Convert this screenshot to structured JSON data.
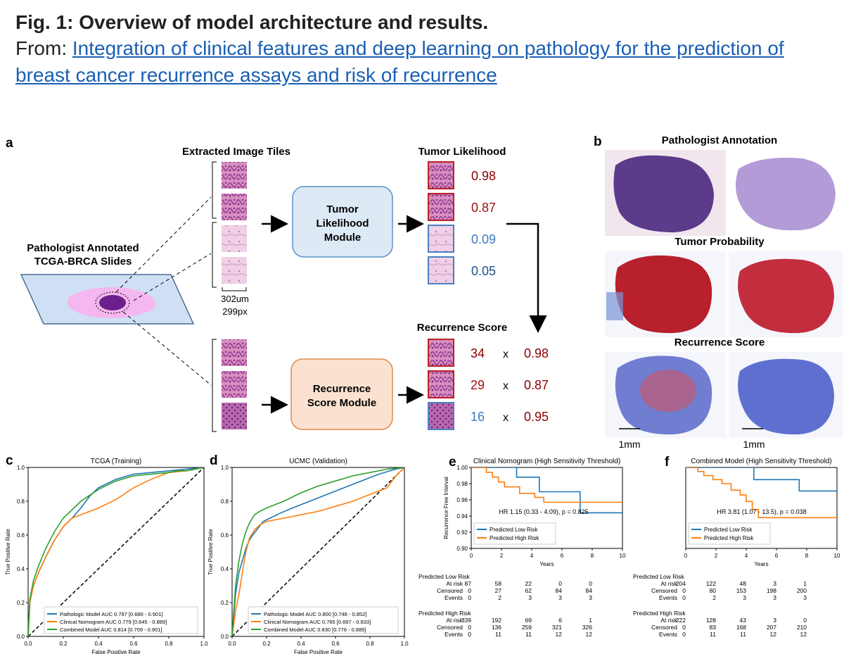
{
  "header": {
    "title": "Fig. 1: Overview of model architecture and results.",
    "from_label": "From: ",
    "link_text": "Integration of clinical features and deep learning on pathology for the prediction of breast cancer recurrence assays and risk of recurrence"
  },
  "panel_a": {
    "letter": "a",
    "slide_label_1": "Pathologist Annotated",
    "slide_label_2": "TCGA-BRCA Slides",
    "tiles_title": "Extracted Image Tiles",
    "scale_1": "302um",
    "scale_2": "299px",
    "tumor_module_1": "Tumor",
    "tumor_module_2": "Likelihood",
    "tumor_module_3": "Module",
    "rs_module_1": "Recurrence",
    "rs_module_2": "Score Module",
    "tumor_likelihood_title": "Tumor Likelihood",
    "tumor_values": [
      "0.98",
      "0.87",
      "0.09",
      "0.05"
    ],
    "recurrence_title": "Recurrence Score",
    "rs_scores": [
      "34",
      "29",
      "16"
    ],
    "times": "x",
    "rs_weights": [
      "0.98",
      "0.87",
      "0.95"
    ]
  },
  "panel_b": {
    "letter": "b",
    "row1": "Pathologist Annotation",
    "row2": "Tumor Probability",
    "row3": "Recurrence Score",
    "scale_left": "1mm",
    "scale_right": "1mm"
  },
  "chart_data": [
    {
      "type": "line",
      "letter": "c",
      "title": "TCGA (Training)",
      "xlabel": "False Positive Rate",
      "ylabel": "True Positive Rate",
      "xlim": [
        0,
        1
      ],
      "ylim": [
        0,
        1
      ],
      "xticks": [
        "0.0",
        "0.2",
        "0.4",
        "0.6",
        "0.8",
        "1.0"
      ],
      "yticks": [
        "0.0",
        "0.2",
        "0.4",
        "0.6",
        "0.8",
        "1.0"
      ],
      "series": [
        {
          "name": "Pathologic Model AUC 0.797 [0.680 - 0.901]",
          "color": "#1f77b4",
          "x": [
            0,
            0.01,
            0.03,
            0.06,
            0.1,
            0.15,
            0.2,
            0.25,
            0.3,
            0.35,
            0.4,
            0.5,
            0.6,
            0.7,
            0.8,
            0.9,
            1.0
          ],
          "y": [
            0,
            0.22,
            0.3,
            0.38,
            0.47,
            0.57,
            0.65,
            0.7,
            0.76,
            0.83,
            0.88,
            0.93,
            0.96,
            0.97,
            0.98,
            0.99,
            1.0
          ]
        },
        {
          "name": "Clinical Nomogram AUC 0.779 [0.645 - 0.889]",
          "color": "#ff7f0e",
          "x": [
            0,
            0.01,
            0.03,
            0.06,
            0.1,
            0.15,
            0.2,
            0.25,
            0.3,
            0.4,
            0.5,
            0.6,
            0.7,
            0.8,
            0.9,
            0.95,
            1.0
          ],
          "y": [
            0,
            0.2,
            0.3,
            0.38,
            0.47,
            0.57,
            0.65,
            0.7,
            0.72,
            0.76,
            0.81,
            0.88,
            0.93,
            0.97,
            0.98,
            0.99,
            1.0
          ]
        },
        {
          "name": "Combined Model AUC 0.814 [0.709 - 0.901]",
          "color": "#2ca02c",
          "x": [
            0,
            0.01,
            0.03,
            0.06,
            0.1,
            0.15,
            0.2,
            0.3,
            0.4,
            0.5,
            0.6,
            0.7,
            0.8,
            0.85,
            0.9,
            1.0
          ],
          "y": [
            0,
            0.22,
            0.33,
            0.42,
            0.52,
            0.62,
            0.7,
            0.8,
            0.87,
            0.92,
            0.95,
            0.96,
            0.97,
            0.98,
            0.98,
            1.0
          ]
        }
      ],
      "diagonal": true
    },
    {
      "type": "line",
      "letter": "d",
      "title": "UCMC (Validation)",
      "xlabel": "False Positive Rate",
      "ylabel": "True Positive Rate",
      "xlim": [
        0,
        1
      ],
      "ylim": [
        0,
        1
      ],
      "xticks": [
        "0.0",
        "0.2",
        "0.4",
        "0.6",
        "0.8",
        "1.0"
      ],
      "yticks": [
        "0.0",
        "0.2",
        "0.4",
        "0.6",
        "0.8",
        "1.0"
      ],
      "series": [
        {
          "name": "Pathologic Model AUC 0.800 [0.748 - 0.852]",
          "color": "#1f77b4",
          "x": [
            0,
            0.02,
            0.04,
            0.06,
            0.08,
            0.1,
            0.12,
            0.15,
            0.18,
            0.22,
            0.28,
            0.35,
            0.45,
            0.55,
            0.65,
            0.75,
            0.85,
            0.95,
            1.0
          ],
          "y": [
            0,
            0.25,
            0.38,
            0.45,
            0.52,
            0.57,
            0.6,
            0.64,
            0.68,
            0.7,
            0.73,
            0.76,
            0.8,
            0.84,
            0.88,
            0.92,
            0.96,
            0.99,
            1.0
          ]
        },
        {
          "name": "Clinical Nomogram AUC 0.765 [0.697 - 0.833]",
          "color": "#ff7f0e",
          "x": [
            0,
            0.02,
            0.04,
            0.06,
            0.08,
            0.1,
            0.13,
            0.16,
            0.2,
            0.25,
            0.3,
            0.4,
            0.5,
            0.6,
            0.7,
            0.8,
            0.9,
            0.95,
            1.0
          ],
          "y": [
            0,
            0.15,
            0.25,
            0.38,
            0.5,
            0.58,
            0.63,
            0.66,
            0.68,
            0.69,
            0.7,
            0.72,
            0.74,
            0.77,
            0.8,
            0.84,
            0.88,
            0.95,
            1.0
          ]
        },
        {
          "name": "Combined Model AUC 0.830 [0.776 - 0.885]",
          "color": "#2ca02c",
          "x": [
            0,
            0.02,
            0.04,
            0.06,
            0.08,
            0.1,
            0.13,
            0.16,
            0.2,
            0.25,
            0.3,
            0.4,
            0.5,
            0.6,
            0.7,
            0.8,
            0.9,
            1.0
          ],
          "y": [
            0,
            0.3,
            0.45,
            0.55,
            0.62,
            0.67,
            0.72,
            0.74,
            0.76,
            0.78,
            0.8,
            0.85,
            0.89,
            0.92,
            0.95,
            0.97,
            0.99,
            1.0
          ]
        }
      ],
      "diagonal": true
    },
    {
      "type": "line",
      "letter": "e",
      "title": "Clinical Nomogram (High Sensitivity Threshold)",
      "xlabel": "Years",
      "ylabel": "Recurrence Free Interval",
      "xlim": [
        0,
        10
      ],
      "ylim": [
        0.9,
        1.0
      ],
      "xticks": [
        "0",
        "2",
        "4",
        "6",
        "8",
        "10"
      ],
      "yticks": [
        "0.90",
        "0.92",
        "0.94",
        "0.96",
        "0.98",
        "1.00"
      ],
      "annotation": "HR 1.15 (0.33 - 4.09), p = 0.825",
      "series": [
        {
          "name": "Predicted Low Risk",
          "color": "#1f77b4",
          "x": [
            0,
            3.0,
            3.0,
            4.5,
            4.5,
            7.2,
            7.2,
            10
          ],
          "y": [
            1.0,
            1.0,
            0.988,
            0.988,
            0.97,
            0.97,
            0.944,
            0.944
          ]
        },
        {
          "name": "Predicted High Risk",
          "color": "#ff7f0e",
          "x": [
            0,
            1.0,
            1.0,
            1.4,
            1.4,
            1.8,
            1.8,
            2.2,
            2.2,
            3.2,
            3.2,
            4.2,
            4.2,
            4.8,
            4.8,
            10
          ],
          "y": [
            1.0,
            1.0,
            0.994,
            0.994,
            0.988,
            0.988,
            0.982,
            0.982,
            0.976,
            0.976,
            0.968,
            0.968,
            0.963,
            0.963,
            0.957,
            0.957
          ]
        }
      ],
      "risk_table": {
        "group1": "Predicted Low Risk",
        "group2": "Predicted High Risk",
        "rows": [
          "At risk",
          "Censored",
          "Events"
        ],
        "low": [
          [
            "87",
            "58",
            "22",
            "0",
            "0"
          ],
          [
            "0",
            "27",
            "62",
            "84",
            "84"
          ],
          [
            "0",
            "2",
            "3",
            "3",
            "3"
          ]
        ],
        "high": [
          [
            "339",
            "192",
            "69",
            "6",
            "1"
          ],
          [
            "0",
            "136",
            "259",
            "321",
            "326"
          ],
          [
            "0",
            "11",
            "11",
            "12",
            "12"
          ]
        ]
      }
    },
    {
      "type": "line",
      "letter": "f",
      "title": "Combined Model (High Sensitivity Threshold)",
      "xlabel": "Years",
      "ylabel": "",
      "xlim": [
        0,
        10
      ],
      "ylim": [
        0.9,
        1.0
      ],
      "xticks": [
        "0",
        "2",
        "4",
        "6",
        "8",
        "10"
      ],
      "yticks": [],
      "annotation": "HR 3.81 (1.07 - 13.5), p = 0.038",
      "series": [
        {
          "name": "Predicted Low Risk",
          "color": "#1f77b4",
          "x": [
            0,
            4.5,
            4.5,
            7.5,
            7.5,
            10
          ],
          "y": [
            1.0,
            1.0,
            0.985,
            0.985,
            0.971,
            0.971
          ]
        },
        {
          "name": "Predicted High Risk",
          "color": "#ff7f0e",
          "x": [
            0,
            0.8,
            0.8,
            1.2,
            1.2,
            1.8,
            1.8,
            2.4,
            2.4,
            3.0,
            3.0,
            3.6,
            3.6,
            4.0,
            4.0,
            4.4,
            4.4,
            4.8,
            4.8,
            10
          ],
          "y": [
            1.0,
            1.0,
            0.995,
            0.995,
            0.99,
            0.99,
            0.985,
            0.985,
            0.98,
            0.98,
            0.972,
            0.972,
            0.966,
            0.966,
            0.958,
            0.958,
            0.948,
            0.948,
            0.938,
            0.938
          ]
        }
      ],
      "risk_table": {
        "group1": "Predicted Low Risk",
        "group2": "Predicted High Risk",
        "rows": [
          "At risk",
          "Censored",
          "Events"
        ],
        "low": [
          [
            "204",
            "122",
            "48",
            "3",
            "1"
          ],
          [
            "0",
            "80",
            "153",
            "198",
            "200"
          ],
          [
            "0",
            "2",
            "3",
            "3",
            "3"
          ]
        ],
        "high": [
          [
            "222",
            "128",
            "43",
            "3",
            "0"
          ],
          [
            "0",
            "83",
            "168",
            "207",
            "210"
          ],
          [
            "0",
            "11",
            "11",
            "12",
            "12"
          ]
        ]
      }
    }
  ]
}
